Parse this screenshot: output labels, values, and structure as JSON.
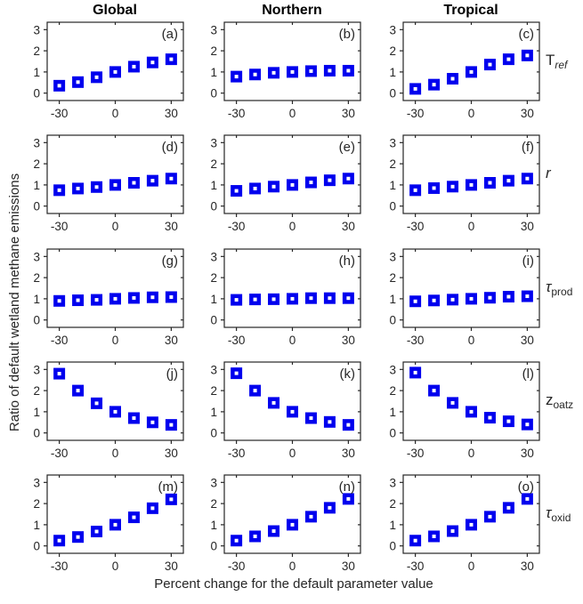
{
  "figure": {
    "xlabel": "Percent change for the default parameter value",
    "ylabel": "Ratio of default wetland methane emissions"
  },
  "row_labels": [
    {
      "main": "T",
      "sub": "ref",
      "main_italic": false,
      "sub_italic": true
    },
    {
      "main": "r",
      "sub": "",
      "main_italic": true,
      "sub_italic": false
    },
    {
      "main": "τ",
      "sub": "prod",
      "main_italic": true,
      "sub_italic": false
    },
    {
      "main": "z",
      "sub": "oatz",
      "main_italic": false,
      "sub_italic": false
    },
    {
      "main": "τ",
      "sub": "oxid",
      "main_italic": true,
      "sub_italic": false
    }
  ],
  "colors": {
    "marker": "#0000EE",
    "marker_center": "#FFFFFF",
    "axis": "#262626",
    "text": "#262626",
    "header": "#000000"
  },
  "chart_data": {
    "type": "scatter",
    "marker": "open-square",
    "grid": false,
    "legend": false,
    "columns": [
      "Global",
      "Northern",
      "Tropical"
    ],
    "rows": [
      "T_ref",
      "r",
      "tau_prod",
      "z_oatz",
      "tau_oxid"
    ],
    "x": [
      -30,
      -20,
      -10,
      0,
      10,
      20,
      30
    ],
    "xlim": [
      -36.5,
      36.5
    ],
    "ylim": [
      -0.35,
      3.35
    ],
    "x_tick_values": [
      -30,
      0,
      30
    ],
    "x_tick_labels": [
      "-30",
      "0",
      "30"
    ],
    "y_tick_values": [
      0,
      1,
      2,
      3
    ],
    "y_tick_labels": [
      "0",
      "1",
      "2",
      "3"
    ],
    "xlabel": "Percent change for the default parameter value",
    "ylabel": "Ratio of default wetland methane emissions",
    "panels": [
      {
        "id": "a",
        "letter": "(a)",
        "column": "Global",
        "row": "T_ref",
        "values": [
          0.35,
          0.52,
          0.75,
          1.0,
          1.25,
          1.45,
          1.6
        ]
      },
      {
        "id": "b",
        "letter": "(b)",
        "column": "Northern",
        "row": "T_ref",
        "values": [
          0.78,
          0.88,
          0.96,
          1.0,
          1.04,
          1.06,
          1.06
        ]
      },
      {
        "id": "c",
        "letter": "(c)",
        "column": "Tropical",
        "row": "T_ref",
        "values": [
          0.2,
          0.4,
          0.68,
          1.0,
          1.35,
          1.6,
          1.78
        ]
      },
      {
        "id": "d",
        "letter": "(d)",
        "column": "Global",
        "row": "r",
        "values": [
          0.75,
          0.83,
          0.9,
          1.0,
          1.1,
          1.2,
          1.3
        ]
      },
      {
        "id": "e",
        "letter": "(e)",
        "column": "Northern",
        "row": "r",
        "values": [
          0.72,
          0.83,
          0.92,
          1.0,
          1.12,
          1.22,
          1.3
        ]
      },
      {
        "id": "f",
        "letter": "(f)",
        "column": "Tropical",
        "row": "r",
        "values": [
          0.75,
          0.85,
          0.92,
          1.0,
          1.1,
          1.2,
          1.3
        ]
      },
      {
        "id": "g",
        "letter": "(g)",
        "column": "Global",
        "row": "tau_prod",
        "values": [
          0.9,
          0.93,
          0.95,
          1.0,
          1.04,
          1.07,
          1.08
        ]
      },
      {
        "id": "h",
        "letter": "(h)",
        "column": "Northern",
        "row": "tau_prod",
        "values": [
          0.95,
          0.97,
          0.98,
          1.0,
          1.03,
          1.03,
          1.03
        ]
      },
      {
        "id": "i",
        "letter": "(i)",
        "column": "Tropical",
        "row": "tau_prod",
        "values": [
          0.88,
          0.92,
          0.96,
          1.0,
          1.05,
          1.1,
          1.12
        ]
      },
      {
        "id": "j",
        "letter": "(j)",
        "column": "Global",
        "row": "z_oatz",
        "values": [
          2.8,
          2.0,
          1.4,
          1.0,
          0.7,
          0.5,
          0.38
        ]
      },
      {
        "id": "k",
        "letter": "(k)",
        "column": "Northern",
        "row": "z_oatz",
        "values": [
          2.82,
          2.0,
          1.42,
          1.0,
          0.7,
          0.52,
          0.38
        ]
      },
      {
        "id": "l",
        "letter": "(l)",
        "column": "Tropical",
        "row": "z_oatz",
        "values": [
          2.85,
          2.0,
          1.42,
          1.0,
          0.72,
          0.55,
          0.4
        ]
      },
      {
        "id": "m",
        "letter": "(m)",
        "column": "Global",
        "row": "tau_oxid",
        "values": [
          0.25,
          0.42,
          0.68,
          1.0,
          1.35,
          1.78,
          2.2
        ]
      },
      {
        "id": "n",
        "letter": "(n)",
        "column": "Northern",
        "row": "tau_oxid",
        "values": [
          0.25,
          0.45,
          0.7,
          1.0,
          1.38,
          1.8,
          2.22
        ]
      },
      {
        "id": "o",
        "letter": "(o)",
        "column": "Tropical",
        "row": "tau_oxid",
        "values": [
          0.25,
          0.45,
          0.7,
          1.0,
          1.38,
          1.8,
          2.22
        ]
      }
    ]
  }
}
